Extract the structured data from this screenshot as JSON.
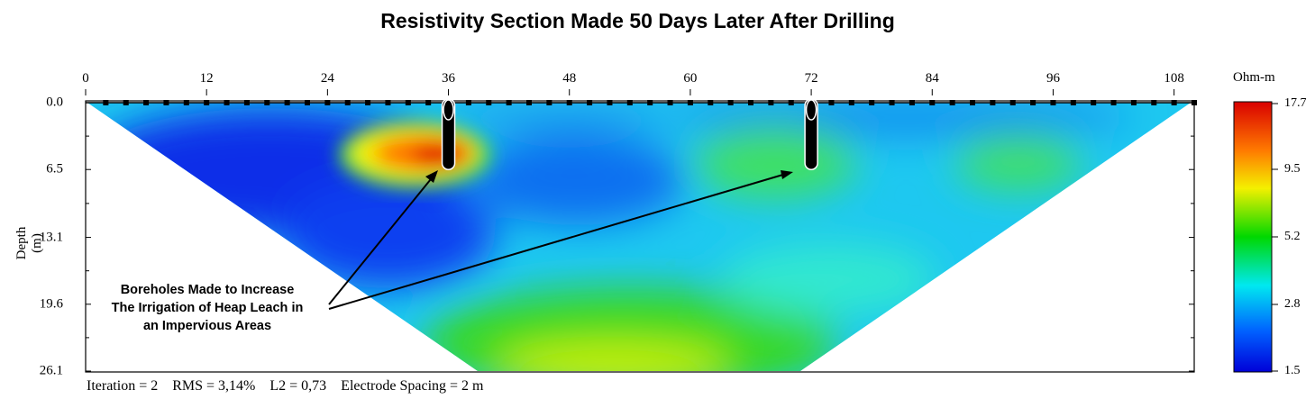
{
  "chart_data": {
    "type": "heatmap",
    "title": "Resistivity Section Made 50 Days Later After Drilling",
    "xlabel": "",
    "ylabel": "Depth (m)",
    "x_ticks": [
      0,
      12,
      24,
      36,
      48,
      60,
      72,
      84,
      96,
      108
    ],
    "y_ticks": [
      "0.0",
      "6.5",
      "13.1",
      "19.6",
      "26.1"
    ],
    "xlim": [
      0,
      110
    ],
    "ylim": [
      0,
      26.1
    ],
    "colorbar": {
      "unit": "Ohm-m",
      "ticks": [
        "17.7",
        "9.5",
        "5.2",
        "2.8",
        "1.5"
      ],
      "colors": [
        "#d90000",
        "#ff7a00",
        "#f4f000",
        "#00d800",
        "#00e8f0",
        "#0060ff",
        "#0000d8"
      ]
    },
    "zones": [
      {
        "x": 10,
        "depth": 3,
        "value": 1.6
      },
      {
        "x": 20,
        "depth": 8,
        "value": 1.6
      },
      {
        "x": 34,
        "depth": 5,
        "value": 15.0
      },
      {
        "x": 45,
        "depth": 9,
        "value": 2.0
      },
      {
        "x": 68,
        "depth": 6,
        "value": 4.5
      },
      {
        "x": 92,
        "depth": 6,
        "value": 4.5
      },
      {
        "x": 55,
        "depth": 24,
        "value": 6.5
      },
      {
        "x": 66,
        "depth": 18,
        "value": 3.0
      }
    ],
    "boreholes": [
      {
        "x": 36,
        "depth": 6.5
      },
      {
        "x": 72,
        "depth": 6.5
      }
    ],
    "annotation": [
      "Boreholes Made to Increase",
      "The Irrigation of Heap Leach in",
      "an Impervious Areas"
    ],
    "footer": "Iteration = 2    RMS = 3,14%    L2 = 0,73    Electrode Spacing = 2 m"
  }
}
